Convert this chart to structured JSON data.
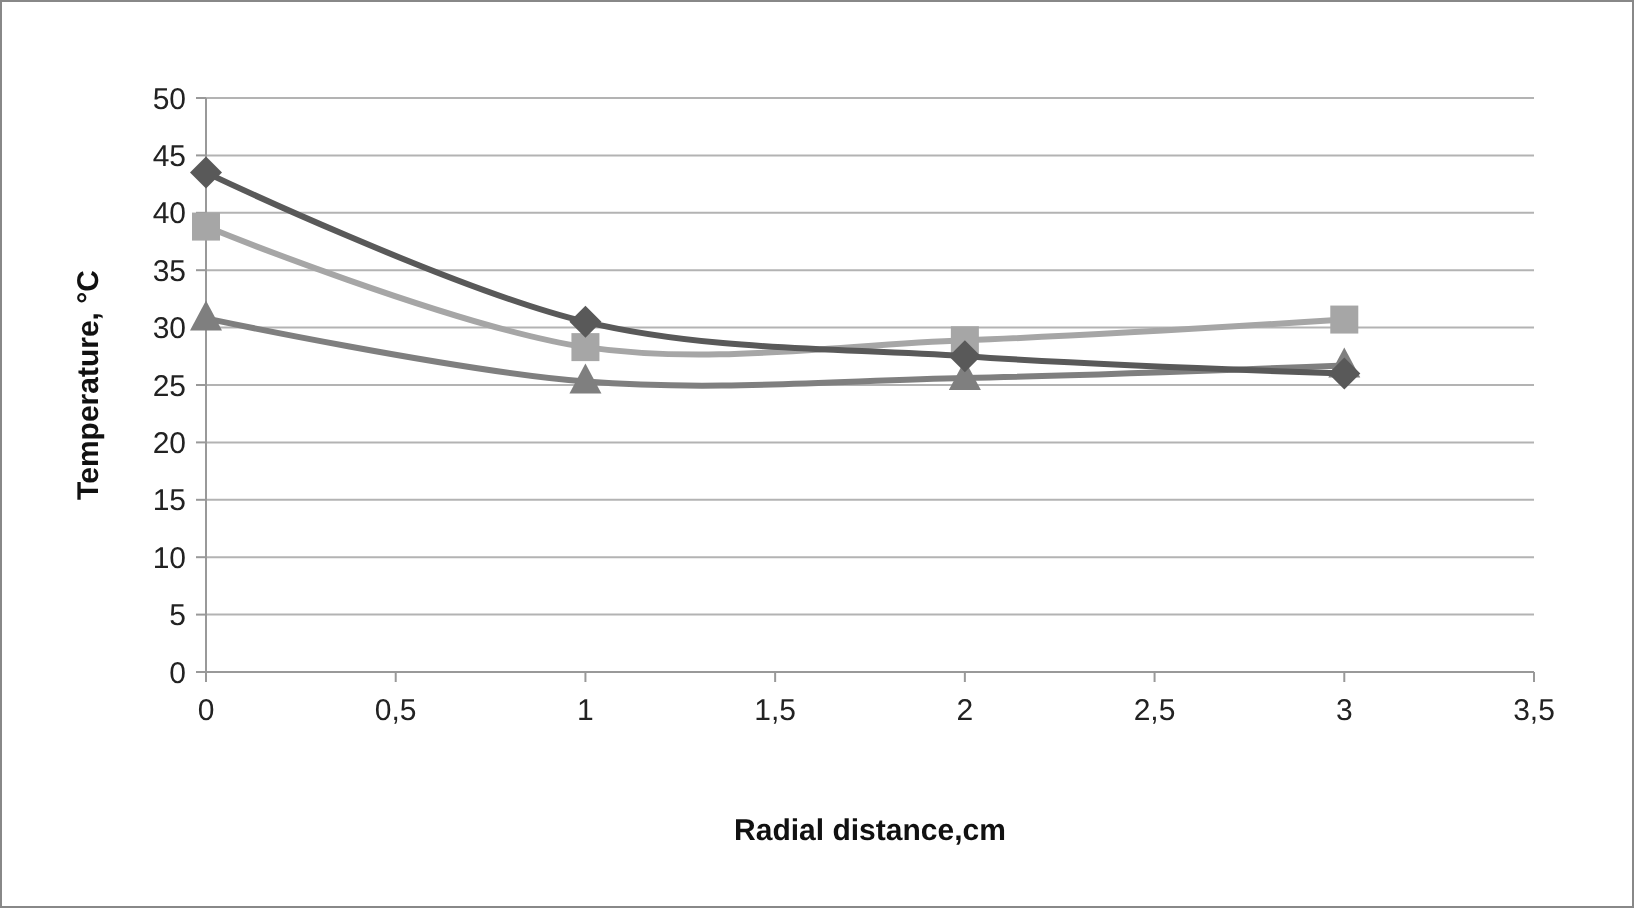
{
  "chart_data": {
    "type": "line",
    "xlabel": "Radial distance,cm",
    "ylabel": "Temperature, °C",
    "x": [
      0,
      1,
      2,
      3
    ],
    "series": [
      {
        "color": "#595959",
        "marker": "diamond",
        "values": [
          43.5,
          30.5,
          27.5,
          26
        ]
      },
      {
        "color": "#a6a6a6",
        "marker": "square",
        "values": [
          38.8,
          28.3,
          28.9,
          30.7
        ]
      },
      {
        "color": "#7f7f7f",
        "marker": "triangle",
        "values": [
          30.8,
          25.3,
          25.6,
          26.7
        ]
      }
    ],
    "xlim": [
      0,
      3.5
    ],
    "xticks": [
      0,
      {
        "value": 0.5,
        "label": "0,5"
      },
      1,
      {
        "value": 1.5,
        "label": "1,5"
      },
      2,
      {
        "value": 2.5,
        "label": "2,5"
      },
      3,
      {
        "value": 3.5,
        "label": "3,5"
      }
    ],
    "ylim": [
      0,
      50
    ],
    "yticks": [
      0,
      5,
      10,
      15,
      20,
      25,
      30,
      35,
      40,
      45,
      50
    ],
    "grid": "y",
    "line_style": "solid"
  }
}
